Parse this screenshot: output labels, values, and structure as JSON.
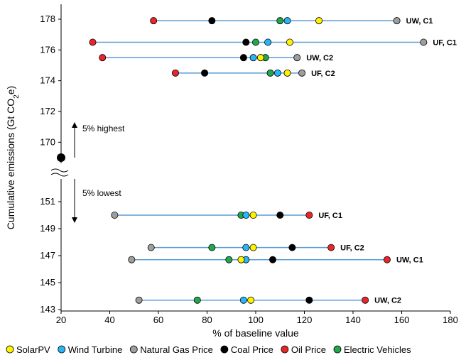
{
  "chart_data": {
    "type": "scatter",
    "xlabel": "% of baseline value",
    "ylabel_main": "Cumulative emissions (Gt CO",
    "ylabel_sub": "2",
    "ylabel_end": "e)",
    "x_range": [
      20,
      180
    ],
    "x_ticks": [
      20,
      40,
      60,
      80,
      100,
      120,
      140,
      160,
      180
    ],
    "upper_ticks": [
      172,
      174,
      176,
      178
    ],
    "upper_cont_ticks": [
      170
    ],
    "lower_ticks": [
      143,
      145,
      147,
      149,
      151
    ],
    "annotations": {
      "highest": "5% highest",
      "lowest": "5% lowest"
    },
    "baseline_point": {
      "x": 20,
      "y": 169
    },
    "colors": {
      "SolarPV": "#fff200",
      "Wind Turbine": "#29b6f6",
      "Natural Gas Price": "#9e9e9e",
      "Coal Price": "#000000",
      "Oil Price": "#e8262a",
      "Electric Vehicles": "#22a84a",
      "line": "#5b9bd5"
    },
    "series": [
      {
        "name": "SolarPV"
      },
      {
        "name": "Wind Turbine"
      },
      {
        "name": "Natural Gas Price"
      },
      {
        "name": "Coal Price"
      },
      {
        "name": "Oil Price"
      },
      {
        "name": "Electric Vehicles"
      }
    ],
    "rows": [
      {
        "label": "UW, C1",
        "group": "upper",
        "y": 177.9,
        "points": {
          "Oil Price": 58,
          "Coal Price": 82,
          "Electric Vehicles": 110,
          "Wind Turbine": 113,
          "SolarPV": 126,
          "Natural Gas Price": 158
        }
      },
      {
        "label": "UF, C1",
        "group": "upper",
        "y": 176.5,
        "points": {
          "Oil Price": 33,
          "Coal Price": 96,
          "Electric Vehicles": 100,
          "Wind Turbine": 105,
          "SolarPV": 114,
          "Natural Gas Price": 169
        }
      },
      {
        "label": "UW, C2",
        "group": "upper",
        "y": 175.5,
        "points": {
          "Oil Price": 37,
          "Coal Price": 95,
          "Wind Turbine": 99,
          "SolarPV": 102,
          "Electric Vehicles": 104,
          "Natural Gas Price": 117
        }
      },
      {
        "label": "UF, C2",
        "group": "upper",
        "y": 174.5,
        "points": {
          "Oil Price": 67,
          "Coal Price": 79,
          "Electric Vehicles": 106,
          "Wind Turbine": 109,
          "SolarPV": 113,
          "Natural Gas Price": 119
        }
      },
      {
        "label": "UF, C1",
        "group": "lower",
        "y": 150.0,
        "points": {
          "Natural Gas Price": 42,
          "Electric Vehicles": 94,
          "Wind Turbine": 96,
          "SolarPV": 99,
          "Coal Price": 110,
          "Oil Price": 122
        }
      },
      {
        "label": "UF, C2",
        "group": "lower",
        "y": 147.6,
        "points": {
          "Natural Gas Price": 57,
          "Electric Vehicles": 82,
          "Wind Turbine": 96,
          "SolarPV": 99,
          "Coal Price": 115,
          "Oil Price": 131
        }
      },
      {
        "label": "UW, C1",
        "group": "lower",
        "y": 146.7,
        "points": {
          "Natural Gas Price": 49,
          "Electric Vehicles": 89,
          "SolarPV": 94,
          "Wind Turbine": 96,
          "Coal Price": 107,
          "Oil Price": 154
        }
      },
      {
        "label": "UW, C2",
        "group": "lower",
        "y": 143.7,
        "points": {
          "Natural Gas Price": 52,
          "Electric Vehicles": 76,
          "Wind Turbine": 95,
          "SolarPV": 98,
          "Coal Price": 122,
          "Oil Price": 145
        }
      }
    ]
  }
}
